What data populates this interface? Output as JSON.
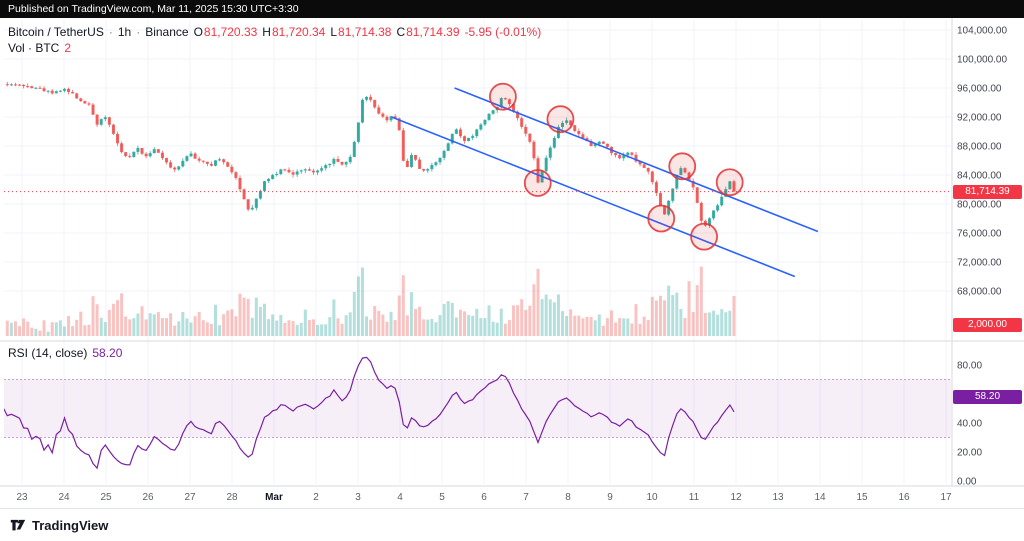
{
  "header_bar": {
    "text": "Published on TradingView.com, Mar 11, 2025 15:30 UTC+3:30"
  },
  "legend": {
    "symbol": "Bitcoin / TetherUS",
    "sep": "·",
    "interval": "1h",
    "exchange": "Binance",
    "ohlc": [
      {
        "label": "O",
        "value": "81,720.33"
      },
      {
        "label": "H",
        "value": "81,720.34"
      },
      {
        "label": "L",
        "value": "81,714.38"
      },
      {
        "label": "C",
        "value": "81,714.39"
      }
    ],
    "change": "-5.95 (-0.01%)"
  },
  "vol_legend": {
    "label": "Vol · BTC",
    "value": "2"
  },
  "rsi_legend": {
    "label": "RSI (14, close)",
    "value": "58.20"
  },
  "price_axis": {
    "ticks": [
      {
        "label": "104,000.00",
        "value": 104000
      },
      {
        "label": "100,000.00",
        "value": 100000
      },
      {
        "label": "96,000.00",
        "value": 96000
      },
      {
        "label": "92,000.00",
        "value": 92000
      },
      {
        "label": "88,000.00",
        "value": 88000
      },
      {
        "label": "84,000.00",
        "value": 84000
      },
      {
        "label": "80,000.00",
        "value": 80000
      },
      {
        "label": "76,000.00",
        "value": 76000
      },
      {
        "label": "72,000.00",
        "value": 72000
      },
      {
        "label": "68,000.00",
        "value": 68000
      }
    ],
    "last_badge": "81,714.39",
    "volume_badge": "2,000.00"
  },
  "rsi_axis": {
    "ticks": [
      {
        "label": "80.00",
        "value": 80
      },
      {
        "label": "40.00",
        "value": 40
      },
      {
        "label": "20.00",
        "value": 20
      },
      {
        "label": "0.00",
        "value": 0
      }
    ],
    "badge": "58.20"
  },
  "time_axis": {
    "labels": [
      {
        "label": "23",
        "day": 0
      },
      {
        "label": "24",
        "day": 1
      },
      {
        "label": "25",
        "day": 2
      },
      {
        "label": "26",
        "day": 3
      },
      {
        "label": "27",
        "day": 4
      },
      {
        "label": "28",
        "day": 5
      },
      {
        "label": "Mar",
        "day": 6,
        "bold": true
      },
      {
        "label": "2",
        "day": 7
      },
      {
        "label": "3",
        "day": 8
      },
      {
        "label": "4",
        "day": 9
      },
      {
        "label": "5",
        "day": 10
      },
      {
        "label": "6",
        "day": 11
      },
      {
        "label": "7",
        "day": 12
      },
      {
        "label": "8",
        "day": 13
      },
      {
        "label": "9",
        "day": 14
      },
      {
        "label": "10",
        "day": 15
      },
      {
        "label": "11",
        "day": 16
      },
      {
        "label": "12",
        "day": 17
      },
      {
        "label": "13",
        "day": 18
      },
      {
        "label": "14",
        "day": 19
      },
      {
        "label": "15",
        "day": 20
      },
      {
        "label": "16",
        "day": 21
      },
      {
        "label": "17",
        "day": 22
      }
    ]
  },
  "footer": {
    "brand": "TradingView"
  },
  "colors": {
    "up": "#26a69a",
    "down": "#ef5350",
    "accent_red": "#f23645",
    "trendline": "#2962ff",
    "rsi": "#7b1fa2",
    "circle": "#e03131"
  },
  "chart_data": {
    "type": "candlestick",
    "title": "Bitcoin / TetherUS · 1h · Binance with descending channel and RSI(14)",
    "interval": "1h",
    "last_close": 81714.39,
    "ohlc_last": {
      "open": 81720.33,
      "high": 81720.34,
      "low": 81714.38,
      "close": 81714.39,
      "change": -5.95,
      "change_pct": -0.01
    },
    "price_range_visible": [
      68000,
      104000
    ],
    "time_range_days": [
      "Feb 23",
      "Mar 17"
    ],
    "price_keypoints": [
      [
        -0.35,
        96600
      ],
      [
        0.3,
        96100
      ],
      [
        0.7,
        95400
      ],
      [
        1.0,
        95900
      ],
      [
        1.3,
        94700
      ],
      [
        1.6,
        93600
      ],
      [
        1.78,
        91000
      ],
      [
        1.95,
        92300
      ],
      [
        2.15,
        90000
      ],
      [
        2.35,
        87200
      ],
      [
        2.55,
        86300
      ],
      [
        2.75,
        87800
      ],
      [
        2.95,
        86500
      ],
      [
        3.15,
        87600
      ],
      [
        3.4,
        86000
      ],
      [
        3.6,
        84600
      ],
      [
        3.8,
        85700
      ],
      [
        4.0,
        86900
      ],
      [
        4.2,
        86100
      ],
      [
        4.5,
        85400
      ],
      [
        4.7,
        86300
      ],
      [
        4.9,
        85000
      ],
      [
        5.1,
        83500
      ],
      [
        5.3,
        80600
      ],
      [
        5.42,
        78700
      ],
      [
        5.6,
        81000
      ],
      [
        5.8,
        83400
      ],
      [
        6.0,
        83900
      ],
      [
        6.2,
        84800
      ],
      [
        6.45,
        84100
      ],
      [
        6.7,
        84900
      ],
      [
        6.95,
        84300
      ],
      [
        7.2,
        85300
      ],
      [
        7.45,
        86100
      ],
      [
        7.65,
        85400
      ],
      [
        7.8,
        86200
      ],
      [
        7.95,
        89500
      ],
      [
        8.1,
        94300
      ],
      [
        8.25,
        95100
      ],
      [
        8.45,
        92700
      ],
      [
        8.65,
        91500
      ],
      [
        8.85,
        92400
      ],
      [
        9.0,
        89800
      ],
      [
        9.12,
        83900
      ],
      [
        9.3,
        87200
      ],
      [
        9.5,
        84500
      ],
      [
        9.7,
        84900
      ],
      [
        9.9,
        86000
      ],
      [
        10.1,
        87800
      ],
      [
        10.3,
        90500
      ],
      [
        10.5,
        88600
      ],
      [
        10.7,
        89300
      ],
      [
        10.9,
        90800
      ],
      [
        11.1,
        92200
      ],
      [
        11.3,
        93400
      ],
      [
        11.45,
        94800
      ],
      [
        11.6,
        93900
      ],
      [
        11.8,
        91800
      ],
      [
        12.0,
        89800
      ],
      [
        12.15,
        87900
      ],
      [
        12.28,
        82800
      ],
      [
        12.45,
        85800
      ],
      [
        12.6,
        88300
      ],
      [
        12.8,
        90900
      ],
      [
        12.95,
        91700
      ],
      [
        13.1,
        90400
      ],
      [
        13.3,
        89200
      ],
      [
        13.55,
        88100
      ],
      [
        13.8,
        88800
      ],
      [
        14.0,
        87300
      ],
      [
        14.2,
        86400
      ],
      [
        14.45,
        87100
      ],
      [
        14.65,
        85800
      ],
      [
        14.9,
        84600
      ],
      [
        15.05,
        82500
      ],
      [
        15.18,
        79900
      ],
      [
        15.3,
        78400
      ],
      [
        15.45,
        81500
      ],
      [
        15.6,
        84000
      ],
      [
        15.72,
        85200
      ],
      [
        15.85,
        83400
      ],
      [
        16.0,
        82000
      ],
      [
        16.1,
        79500
      ],
      [
        16.22,
        76600
      ],
      [
        16.35,
        77800
      ],
      [
        16.5,
        79300
      ],
      [
        16.65,
        80700
      ],
      [
        16.8,
        82600
      ],
      [
        16.9,
        83300
      ],
      [
        16.98,
        81714
      ]
    ],
    "annotations": {
      "channel_upper": [
        [
          10.3,
          96000
        ],
        [
          18.95,
          76200
        ]
      ],
      "channel_lower": [
        [
          8.8,
          92000
        ],
        [
          18.4,
          70000
        ]
      ],
      "circles": [
        [
          11.45,
          94800
        ],
        [
          12.82,
          91700
        ],
        [
          12.28,
          82900
        ],
        [
          15.72,
          85200
        ],
        [
          15.22,
          78000
        ],
        [
          16.24,
          75500
        ],
        [
          16.85,
          83000
        ]
      ]
    },
    "rsi": {
      "period": 14,
      "last": 58.2,
      "band": [
        30,
        70
      ],
      "scale_ticks": [
        80,
        40,
        20,
        0
      ]
    }
  }
}
